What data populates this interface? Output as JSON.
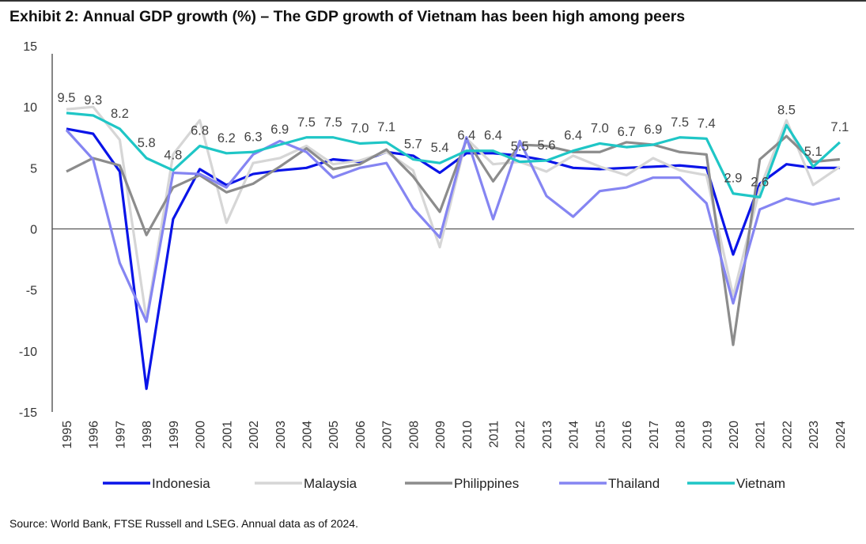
{
  "title": "Exhibit 2: Annual GDP growth (%) – The GDP growth of Vietnam has been high among peers",
  "source": "Source: World Bank, FTSE Russell and LSEG. Annual data as of 2024.",
  "chart_data": {
    "type": "line",
    "title": "Exhibit 2: Annual GDP growth (%) – The GDP growth of Vietnam has been high among peers",
    "xlabel": "",
    "ylabel": "",
    "ylim": [
      -15,
      15
    ],
    "yticks": [
      15,
      10,
      5,
      0,
      -5,
      -10,
      -15
    ],
    "grid": false,
    "legend": "bottom",
    "categories": [
      "1995",
      "1996",
      "1997",
      "1998",
      "1999",
      "2000",
      "2001",
      "2002",
      "2003",
      "2004",
      "2005",
      "2006",
      "2007",
      "2008",
      "2009",
      "2010",
      "2011",
      "2012",
      "2013",
      "2014",
      "2015",
      "2016",
      "2017",
      "2018",
      "2019",
      "2020",
      "2021",
      "2022",
      "2023",
      "2024"
    ],
    "series": [
      {
        "name": "Indonesia",
        "color": "#0a14e8",
        "values": [
          8.2,
          7.8,
          4.7,
          -13.1,
          0.8,
          4.9,
          3.6,
          4.5,
          4.8,
          5.0,
          5.7,
          5.5,
          6.3,
          6.0,
          4.6,
          6.2,
          6.2,
          6.0,
          5.6,
          5.0,
          4.9,
          5.0,
          5.1,
          5.2,
          5.0,
          -2.1,
          3.7,
          5.3,
          5.0,
          5.0
        ]
      },
      {
        "name": "Malaysia",
        "color": "#d6d6d6",
        "values": [
          9.8,
          10.0,
          7.3,
          -7.4,
          6.1,
          8.9,
          0.5,
          5.4,
          5.8,
          6.8,
          5.3,
          5.6,
          6.3,
          4.8,
          -1.5,
          7.4,
          5.3,
          5.5,
          4.7,
          6.0,
          5.1,
          4.4,
          5.8,
          4.8,
          4.4,
          -5.5,
          3.3,
          8.9,
          3.6,
          5.1
        ]
      },
      {
        "name": "Philippines",
        "color": "#8c8c8c",
        "values": [
          4.7,
          5.8,
          5.2,
          -0.5,
          3.4,
          4.4,
          3.0,
          3.7,
          5.1,
          6.6,
          4.9,
          5.3,
          6.5,
          4.3,
          1.4,
          7.3,
          3.9,
          6.9,
          6.8,
          6.3,
          6.3,
          7.1,
          6.9,
          6.3,
          6.1,
          -9.5,
          5.7,
          7.6,
          5.5,
          5.7
        ]
      },
      {
        "name": "Thailand",
        "color": "#8585f2",
        "values": [
          8.1,
          5.7,
          -2.8,
          -7.6,
          4.6,
          4.5,
          3.4,
          6.1,
          7.2,
          6.3,
          4.2,
          5.0,
          5.4,
          1.7,
          -0.7,
          7.5,
          0.8,
          7.2,
          2.7,
          1.0,
          3.1,
          3.4,
          4.2,
          4.2,
          2.1,
          -6.1,
          1.6,
          2.5,
          2.0,
          2.5
        ]
      },
      {
        "name": "Vietnam",
        "color": "#1fc6c6",
        "data_labels": true,
        "values": [
          9.5,
          9.3,
          8.2,
          5.8,
          4.8,
          6.8,
          6.2,
          6.3,
          6.9,
          7.5,
          7.5,
          7.0,
          7.1,
          5.7,
          5.4,
          6.4,
          6.4,
          5.5,
          5.6,
          6.4,
          7.0,
          6.7,
          6.9,
          7.5,
          7.4,
          2.9,
          2.6,
          8.5,
          5.1,
          7.1
        ]
      }
    ]
  }
}
